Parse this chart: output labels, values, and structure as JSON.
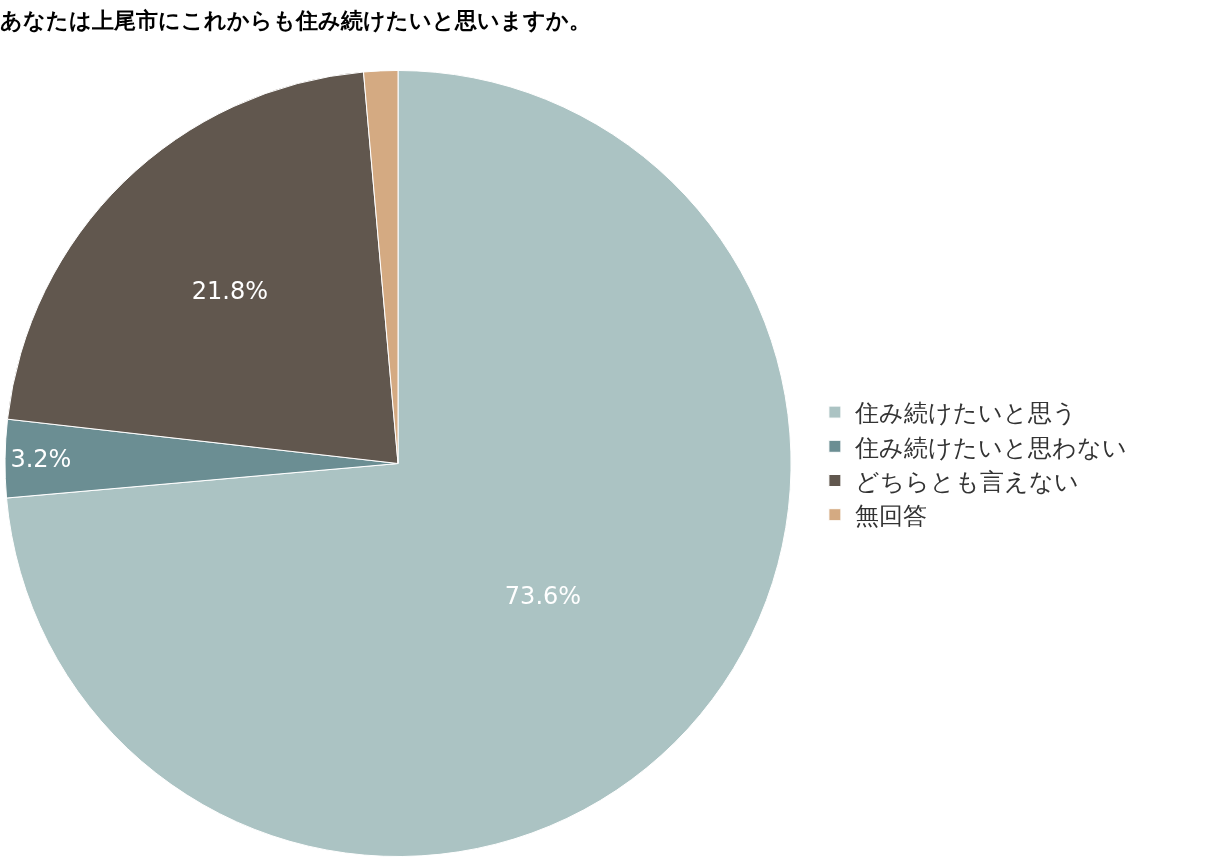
{
  "chart_data": {
    "type": "pie",
    "title": "あなたは上尾市にこれからも住み続けたいと思いますか。",
    "categories": [
      "住み続けたいと思う",
      "住み続けたいと思わない",
      "どちらとも言えない",
      "無回答"
    ],
    "values": [
      73.6,
      3.2,
      21.8,
      1.4
    ],
    "value_labels": [
      "73.6%",
      "3.2%",
      "21.8%",
      null
    ],
    "colors": [
      "#abc3c3",
      "#6b8e93",
      "#61574e",
      "#d4aa82"
    ],
    "legend": "right"
  }
}
